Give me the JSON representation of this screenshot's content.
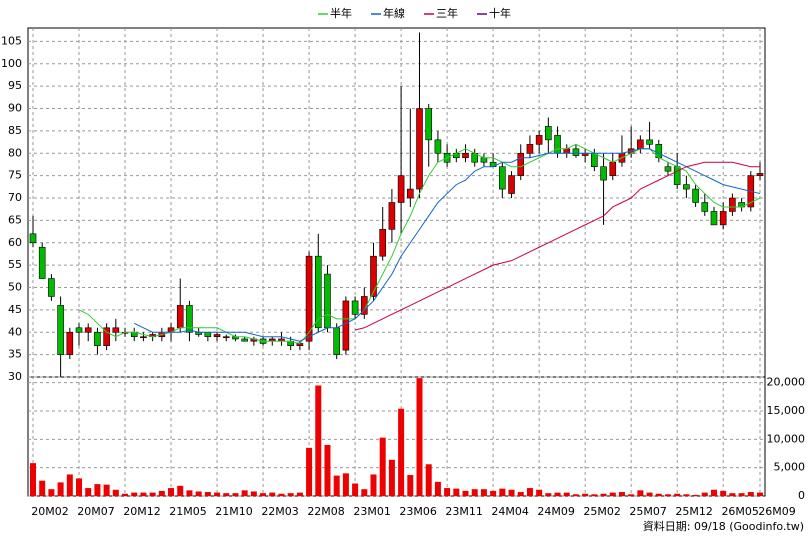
{
  "chart_data": {
    "type": "candlestick",
    "legend": [
      "半年",
      "年線",
      "三年",
      "十年"
    ],
    "footer": "資料日期: 09/18 (Goodinfo.tw)",
    "categories": [
      "20M02",
      null,
      null,
      null,
      null,
      "20M07",
      null,
      null,
      null,
      null,
      "20M12",
      null,
      null,
      null,
      null,
      "21M05",
      null,
      null,
      null,
      null,
      "21M10",
      null,
      null,
      null,
      null,
      "22M03",
      null,
      null,
      null,
      null,
      "22M08",
      null,
      null,
      null,
      null,
      "23M01",
      null,
      null,
      null,
      null,
      "23M06",
      null,
      null,
      null,
      null,
      "23M11",
      null,
      null,
      null,
      null,
      "24M04",
      null,
      null,
      null,
      null,
      "24M09",
      null,
      null,
      null,
      null,
      "25M02",
      null,
      null,
      null,
      null,
      "25M07",
      null,
      null,
      null,
      null,
      "25M12",
      null,
      null,
      null,
      null,
      "26M05",
      null,
      null,
      null,
      "26M09"
    ],
    "ohlc": [
      [
        62,
        66,
        59,
        60
      ],
      [
        59,
        60,
        52,
        52
      ],
      [
        52,
        53,
        47,
        48
      ],
      [
        46,
        48,
        30,
        35
      ],
      [
        35,
        41,
        34,
        40
      ],
      [
        41,
        42,
        37,
        40
      ],
      [
        40,
        42,
        38,
        41
      ],
      [
        40,
        41,
        35,
        37
      ],
      [
        37,
        42,
        36,
        41
      ],
      [
        40,
        43,
        38,
        41
      ],
      [
        40,
        41,
        39,
        40
      ],
      [
        40,
        41,
        38,
        39
      ],
      [
        39,
        40,
        38,
        39
      ],
      [
        39,
        40,
        38,
        39.5
      ],
      [
        39,
        41,
        38,
        40
      ],
      [
        40,
        42,
        38,
        41
      ],
      [
        41,
        52,
        40,
        46
      ],
      [
        46,
        47,
        38,
        40
      ],
      [
        40,
        41,
        39,
        39.5
      ],
      [
        40,
        40,
        38,
        39
      ],
      [
        39,
        40,
        38,
        39.5
      ],
      [
        39,
        39.5,
        38,
        39
      ],
      [
        39,
        39.5,
        38,
        38.5
      ],
      [
        38.5,
        39,
        38,
        38
      ],
      [
        38,
        39,
        37,
        38.5
      ],
      [
        38.5,
        39,
        37,
        37.5
      ],
      [
        38,
        39,
        37,
        38.5
      ],
      [
        38,
        40,
        37,
        38.5
      ],
      [
        38,
        39,
        36,
        37
      ],
      [
        37,
        38,
        36,
        37.5
      ],
      [
        38,
        58,
        36,
        57
      ],
      [
        57,
        62,
        40,
        41
      ],
      [
        53,
        55,
        40,
        41
      ],
      [
        41,
        42,
        34,
        35
      ],
      [
        36,
        48,
        35,
        47
      ],
      [
        47,
        48,
        43,
        44
      ],
      [
        44,
        50,
        43,
        48
      ],
      [
        48,
        60,
        47,
        57
      ],
      [
        57,
        68,
        56,
        63
      ],
      [
        63,
        72,
        60,
        69
      ],
      [
        69,
        95,
        62,
        75
      ],
      [
        70,
        90,
        68,
        72
      ],
      [
        72,
        107,
        70,
        90
      ],
      [
        90,
        91,
        77,
        83
      ],
      [
        83,
        85,
        78,
        80
      ],
      [
        80,
        82,
        77,
        78
      ],
      [
        80,
        81,
        78,
        79
      ],
      [
        79,
        82,
        78,
        80
      ],
      [
        80,
        81,
        77,
        78
      ],
      [
        79,
        80,
        77,
        78
      ],
      [
        78,
        80,
        77,
        77
      ],
      [
        77,
        78,
        70,
        72
      ],
      [
        71,
        76,
        70,
        75
      ],
      [
        75,
        82,
        74,
        80
      ],
      [
        80,
        84,
        79,
        82
      ],
      [
        82,
        85,
        80,
        84
      ],
      [
        86,
        88,
        80,
        83
      ],
      [
        84,
        86,
        79,
        80
      ],
      [
        80,
        82,
        79,
        81
      ],
      [
        81,
        82,
        79,
        79.5
      ],
      [
        79.5,
        81,
        78,
        80
      ],
      [
        80,
        81,
        76,
        77
      ],
      [
        77,
        80,
        64,
        74
      ],
      [
        75,
        80,
        74,
        78
      ],
      [
        78,
        84,
        77,
        80
      ],
      [
        80,
        86,
        79,
        81
      ],
      [
        81,
        84,
        80,
        83
      ],
      [
        83,
        87,
        81,
        82
      ],
      [
        82,
        83,
        78,
        79
      ],
      [
        77,
        78,
        75,
        76
      ],
      [
        77,
        80,
        72,
        73
      ],
      [
        73,
        75,
        70,
        72
      ],
      [
        72,
        73,
        68,
        69
      ],
      [
        69,
        71,
        66,
        67
      ],
      [
        67,
        68,
        64,
        64
      ],
      [
        64,
        69,
        63,
        67
      ],
      [
        67,
        71,
        66,
        70
      ],
      [
        69,
        70,
        67,
        68
      ],
      [
        68,
        76,
        67,
        75
      ],
      [
        75,
        78,
        74,
        75.5
      ]
    ],
    "volume": [
      5800,
      2700,
      1200,
      2400,
      3800,
      3100,
      1400,
      2100,
      2000,
      1100,
      400,
      600,
      600,
      600,
      900,
      1400,
      1800,
      1000,
      800,
      700,
      600,
      500,
      500,
      1000,
      800,
      500,
      600,
      400,
      500,
      600,
      8500,
      19500,
      9000,
      3600,
      4000,
      2200,
      1200,
      3800,
      10300,
      6400,
      15400,
      3700,
      20800,
      5600,
      2500,
      1400,
      1300,
      900,
      1200,
      1200,
      900,
      1300,
      1100,
      700,
      1400,
      1100,
      500,
      600,
      600,
      300,
      400,
      300,
      400,
      600,
      700,
      300,
      1000,
      600,
      400,
      300,
      400,
      300,
      200,
      600,
      1100,
      900,
      500,
      500,
      700,
      600
    ],
    "ylim": [
      30,
      108
    ],
    "yticks": [
      30,
      35,
      40,
      45,
      50,
      55,
      60,
      65,
      70,
      75,
      80,
      85,
      90,
      95,
      100,
      105
    ],
    "vlim": [
      0,
      21000
    ],
    "vticks": [
      0,
      {
        "value": 5000,
        "label": "5,000"
      },
      {
        "value": 10000,
        "label": "10,000"
      },
      {
        "value": 15000,
        "label": "15,000"
      },
      {
        "value": 20000,
        "label": "20,000"
      }
    ],
    "up_color": "#dd0000",
    "down_color": "#00bb00",
    "volume_color": "#ee0000",
    "grid": true,
    "series": [
      {
        "name": "半年",
        "color": "#33cc33",
        "values": [
          null,
          null,
          null,
          null,
          null,
          45,
          44,
          42,
          40,
          39,
          40,
          40,
          39.5,
          39,
          39.5,
          40,
          41,
          41,
          41,
          41,
          41,
          40,
          39,
          39,
          38.5,
          38,
          38,
          38,
          38,
          37.5,
          40,
          43,
          44,
          43,
          43,
          43,
          45,
          49,
          53,
          57,
          62,
          66,
          71,
          75,
          78,
          79,
          80,
          81,
          80,
          79,
          79,
          78,
          77,
          77,
          78,
          79,
          80,
          81,
          81,
          82,
          81,
          80,
          79,
          78,
          79,
          80,
          81,
          81,
          79,
          78,
          77,
          76,
          73,
          71,
          69,
          68,
          68,
          68,
          69,
          70
        ]
      },
      {
        "name": "年線",
        "color": "#1166cc",
        "values": [
          null,
          null,
          null,
          null,
          null,
          null,
          null,
          null,
          null,
          null,
          null,
          42,
          41,
          40,
          40,
          40,
          40,
          40.5,
          40,
          40,
          40,
          40,
          40,
          40,
          39.5,
          39,
          39,
          39,
          38.5,
          38,
          39,
          40,
          41,
          41,
          42,
          43,
          45,
          47,
          50,
          53,
          57,
          60,
          63,
          66,
          69,
          71,
          73,
          74,
          76,
          77,
          77,
          78,
          78,
          79,
          79,
          79.5,
          80,
          80,
          80,
          80,
          80,
          80,
          80,
          80,
          80,
          80.5,
          81,
          81,
          80,
          79,
          78,
          77,
          76,
          75,
          74,
          73,
          72.5,
          72,
          71.5,
          71
        ]
      },
      {
        "name": "三年",
        "color": "#cc0044",
        "values": [
          null,
          null,
          null,
          null,
          null,
          null,
          null,
          null,
          null,
          null,
          null,
          null,
          null,
          null,
          null,
          null,
          null,
          null,
          null,
          null,
          null,
          null,
          null,
          null,
          null,
          null,
          null,
          null,
          null,
          null,
          null,
          null,
          null,
          null,
          null,
          40.5,
          41,
          42,
          43,
          44,
          45,
          46,
          47,
          48,
          49,
          50,
          51,
          52,
          53,
          54,
          55,
          55.5,
          56,
          57,
          58,
          59,
          60,
          61,
          62,
          63,
          64,
          65,
          66,
          68,
          69,
          70,
          72,
          73,
          74,
          75,
          76,
          77,
          77.5,
          78,
          78,
          78,
          78,
          77.5,
          77,
          77
        ]
      },
      {
        "name": "十年",
        "color": "#660099",
        "values": [
          null,
          null,
          null,
          null,
          null,
          null,
          null,
          null,
          null,
          null,
          null,
          null,
          null,
          null,
          null,
          null,
          null,
          null,
          null,
          null,
          null,
          null,
          null,
          null,
          null,
          null,
          null,
          null,
          null,
          null,
          null,
          null,
          null,
          null,
          null,
          null,
          null,
          null,
          null,
          null,
          null,
          null,
          null,
          null,
          null,
          null,
          null,
          null,
          null,
          null,
          null,
          null,
          null,
          null,
          null,
          null,
          null,
          null,
          null,
          null,
          null,
          null,
          null,
          null,
          null,
          null,
          null,
          null,
          null,
          null,
          null,
          null,
          null,
          null,
          null,
          null,
          null,
          null,
          null,
          null
        ]
      }
    ]
  }
}
